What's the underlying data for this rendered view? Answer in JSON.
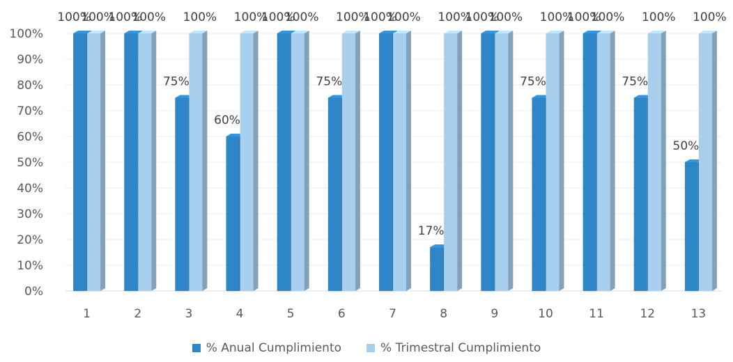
{
  "chart_data": {
    "type": "bar",
    "title": "",
    "xlabel": "",
    "ylabel": "",
    "categories": [
      "1",
      "2",
      "3",
      "4",
      "5",
      "6",
      "7",
      "8",
      "9",
      "10",
      "11",
      "12",
      "13"
    ],
    "series": [
      {
        "name": "% Anual Cumplimiento",
        "values": [
          100,
          100,
          75,
          60,
          100,
          75,
          100,
          17,
          100,
          75,
          100,
          75,
          50
        ],
        "color": "#2E86C8"
      },
      {
        "name": "% Trimestral Cumplimiento",
        "values": [
          100,
          100,
          100,
          100,
          100,
          100,
          100,
          100,
          100,
          100,
          100,
          100,
          100
        ],
        "color": "#A9CFEF"
      }
    ],
    "ylim": [
      0,
      100
    ],
    "yticks": [
      "0%",
      "10%",
      "20%",
      "30%",
      "40%",
      "50%",
      "60%",
      "70%",
      "80%",
      "90%",
      "100%"
    ],
    "data_labels": [
      [
        "100%",
        "100%",
        "75%",
        "60%",
        "100%",
        "75%",
        "100%",
        "17%",
        "100%",
        "75%",
        "100%",
        "75%",
        "50%"
      ],
      [
        "100%",
        "100%",
        "100%",
        "100%",
        "100%",
        "100%",
        "100%",
        "100%",
        "100%",
        "100%",
        "100%",
        "100%",
        "100%"
      ]
    ],
    "style": "3d-clustered-column",
    "grid": true,
    "legend": "bottom"
  }
}
